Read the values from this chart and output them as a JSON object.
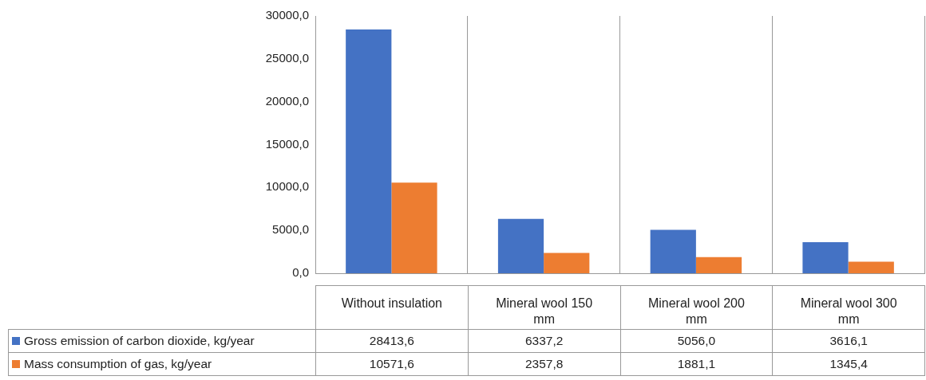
{
  "chart_data": {
    "type": "bar",
    "categories": [
      "Without insulation",
      "Mineral wool 150 mm",
      "Mineral wool 200 mm",
      "Mineral wool 300 mm"
    ],
    "series": [
      {
        "name": "Gross emission of carbon dioxide, kg/year",
        "color": "#4472c4",
        "values": [
          28413.6,
          6337.2,
          5056.0,
          3616.1
        ],
        "value_labels": [
          "28413,6",
          "6337,2",
          "5056,0",
          "3616,1"
        ]
      },
      {
        "name": "Mass consumption of gas, kg/year",
        "color": "#ed7d31",
        "values": [
          10571.6,
          2357.8,
          1881.1,
          1345.4
        ],
        "value_labels": [
          "10571,6",
          "2357,8",
          "1881,1",
          "1345,4"
        ]
      }
    ],
    "ylim": [
      0,
      30000
    ],
    "yticks": [
      {
        "value": 0,
        "label": "0,0"
      },
      {
        "value": 5000,
        "label": "5000,0"
      },
      {
        "value": 10000,
        "label": "10000,0"
      },
      {
        "value": 15000,
        "label": "15000,0"
      },
      {
        "value": 20000,
        "label": "20000,0"
      },
      {
        "value": 25000,
        "label": "25000,0"
      },
      {
        "value": 30000,
        "label": "30000,0"
      }
    ],
    "grid": "x",
    "legend": "bottom"
  }
}
